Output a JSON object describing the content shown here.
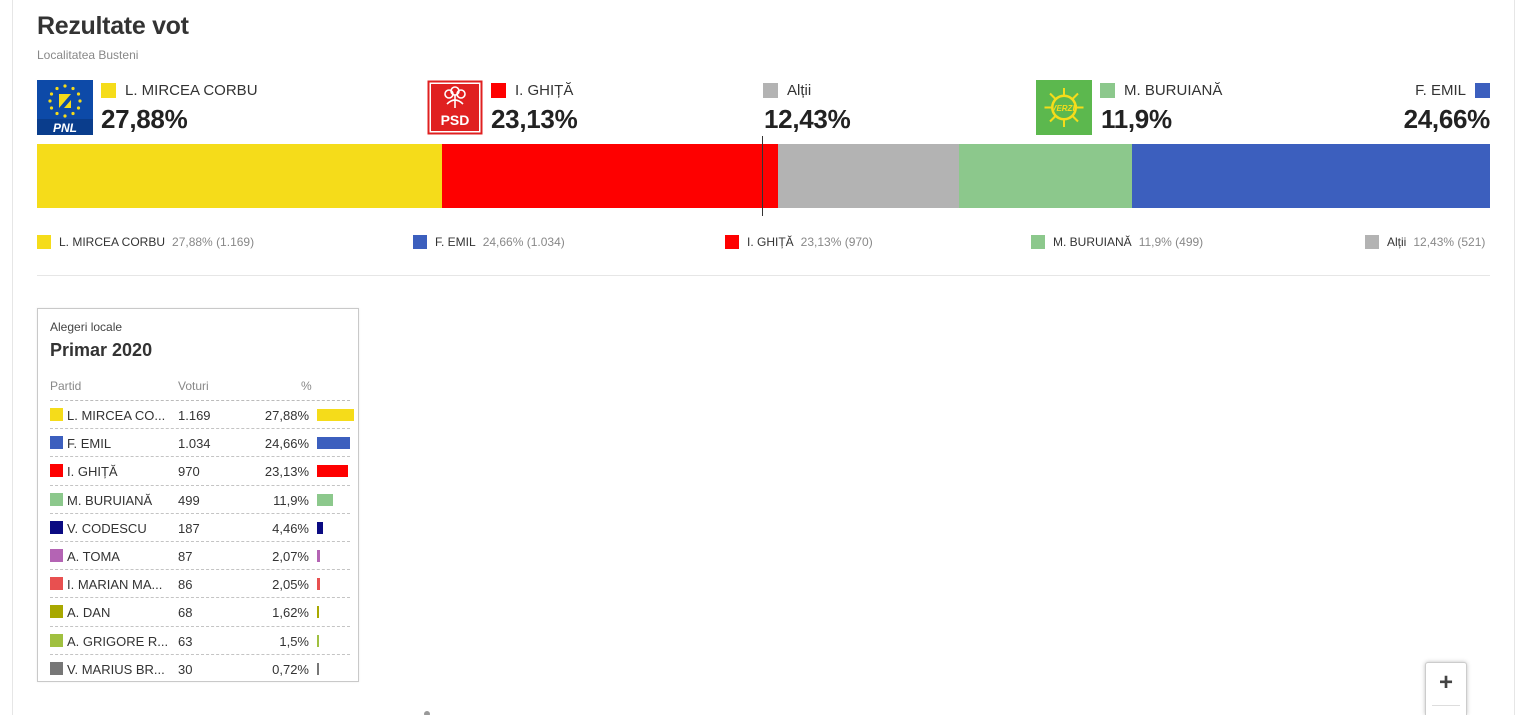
{
  "header": {
    "title": "Rezultate vot",
    "subtitle": "Localitatea Busteni"
  },
  "colors": {
    "mircea_corbu": "#f5dc1a",
    "ghita": "#fe0000",
    "altii": "#b3b3b3",
    "buruiana": "#8cc88c",
    "emil": "#3c5fbe"
  },
  "top_candidates": [
    {
      "name": "L. MIRCEA CORBU",
      "pct": "27,88%",
      "party_logo": "PNL",
      "color": "#f5dc1a"
    },
    {
      "name": "I. GHIȚĂ",
      "pct": "23,13%",
      "party_logo": "PSD",
      "color": "#fe0000"
    },
    {
      "name": "Alții",
      "pct": "12,43%",
      "color": "#b3b3b3"
    },
    {
      "name": "M. BURUIANĂ",
      "pct": "11,9%",
      "party_logo": "VERZII",
      "color": "#8cc88c"
    },
    {
      "name": "F. EMIL",
      "pct": "24,66%",
      "color": "#3c5fbe"
    }
  ],
  "bar_segments": [
    {
      "name": "L. MIRCEA CORBU",
      "value": 27.88,
      "color": "#f5dc1a"
    },
    {
      "name": "I. GHIȚĂ",
      "value": 23.13,
      "color": "#fe0000"
    },
    {
      "name": "Alții",
      "value": 12.43,
      "color": "#b3b3b3"
    },
    {
      "name": "M. BURUIANĂ",
      "value": 11.9,
      "color": "#8cc88c"
    },
    {
      "name": "F. EMIL",
      "value": 24.66,
      "color": "#3c5fbe"
    }
  ],
  "legend": [
    {
      "name": "L. MIRCEA CORBU",
      "value": "27,88% (1.169)",
      "color": "#f5dc1a"
    },
    {
      "name": "F. EMIL",
      "value": "24,66% (1.034)",
      "color": "#3c5fbe"
    },
    {
      "name": "I. GHIȚĂ",
      "value": "23,13% (970)",
      "color": "#fe0000"
    },
    {
      "name": "M. BURUIANĂ",
      "value": "11,9% (499)",
      "color": "#8cc88c"
    },
    {
      "name": "Alții",
      "value": "12,43% (521)",
      "color": "#b3b3b3"
    }
  ],
  "results_card": {
    "kicker": "Alegeri locale",
    "title": "Primar 2020",
    "columns": [
      "Partid",
      "Voturi",
      "%"
    ],
    "rows": [
      {
        "name": "L. MIRCEA CO...",
        "votes": "1.169",
        "pct": "27,88%",
        "share": 27.88,
        "color": "#f5dc1a"
      },
      {
        "name": "F. EMIL",
        "votes": "1.034",
        "pct": "24,66%",
        "share": 24.66,
        "color": "#3c5fbe"
      },
      {
        "name": "I. GHIȚĂ",
        "votes": "970",
        "pct": "23,13%",
        "share": 23.13,
        "color": "#fe0000"
      },
      {
        "name": "M. BURUIANĂ",
        "votes": "499",
        "pct": "11,9%",
        "share": 11.9,
        "color": "#8cc88c"
      },
      {
        "name": "V. CODESCU",
        "votes": "187",
        "pct": "4,46%",
        "share": 4.46,
        "color": "#0a0a82"
      },
      {
        "name": "A. TOMA",
        "votes": "87",
        "pct": "2,07%",
        "share": 2.07,
        "color": "#b464b4"
      },
      {
        "name": "I. MARIAN MA...",
        "votes": "86",
        "pct": "2,05%",
        "share": 2.05,
        "color": "#e85050"
      },
      {
        "name": "A. DAN",
        "votes": "68",
        "pct": "1,62%",
        "share": 1.62,
        "color": "#a8a800"
      },
      {
        "name": "A. GRIGORE R...",
        "votes": "63",
        "pct": "1,5%",
        "share": 1.5,
        "color": "#a0c040"
      },
      {
        "name": "V. MARIUS BR...",
        "votes": "30",
        "pct": "0,72%",
        "share": 0.72,
        "color": "#777777"
      }
    ]
  },
  "map_controls": {
    "zoom_in_label": "+"
  }
}
